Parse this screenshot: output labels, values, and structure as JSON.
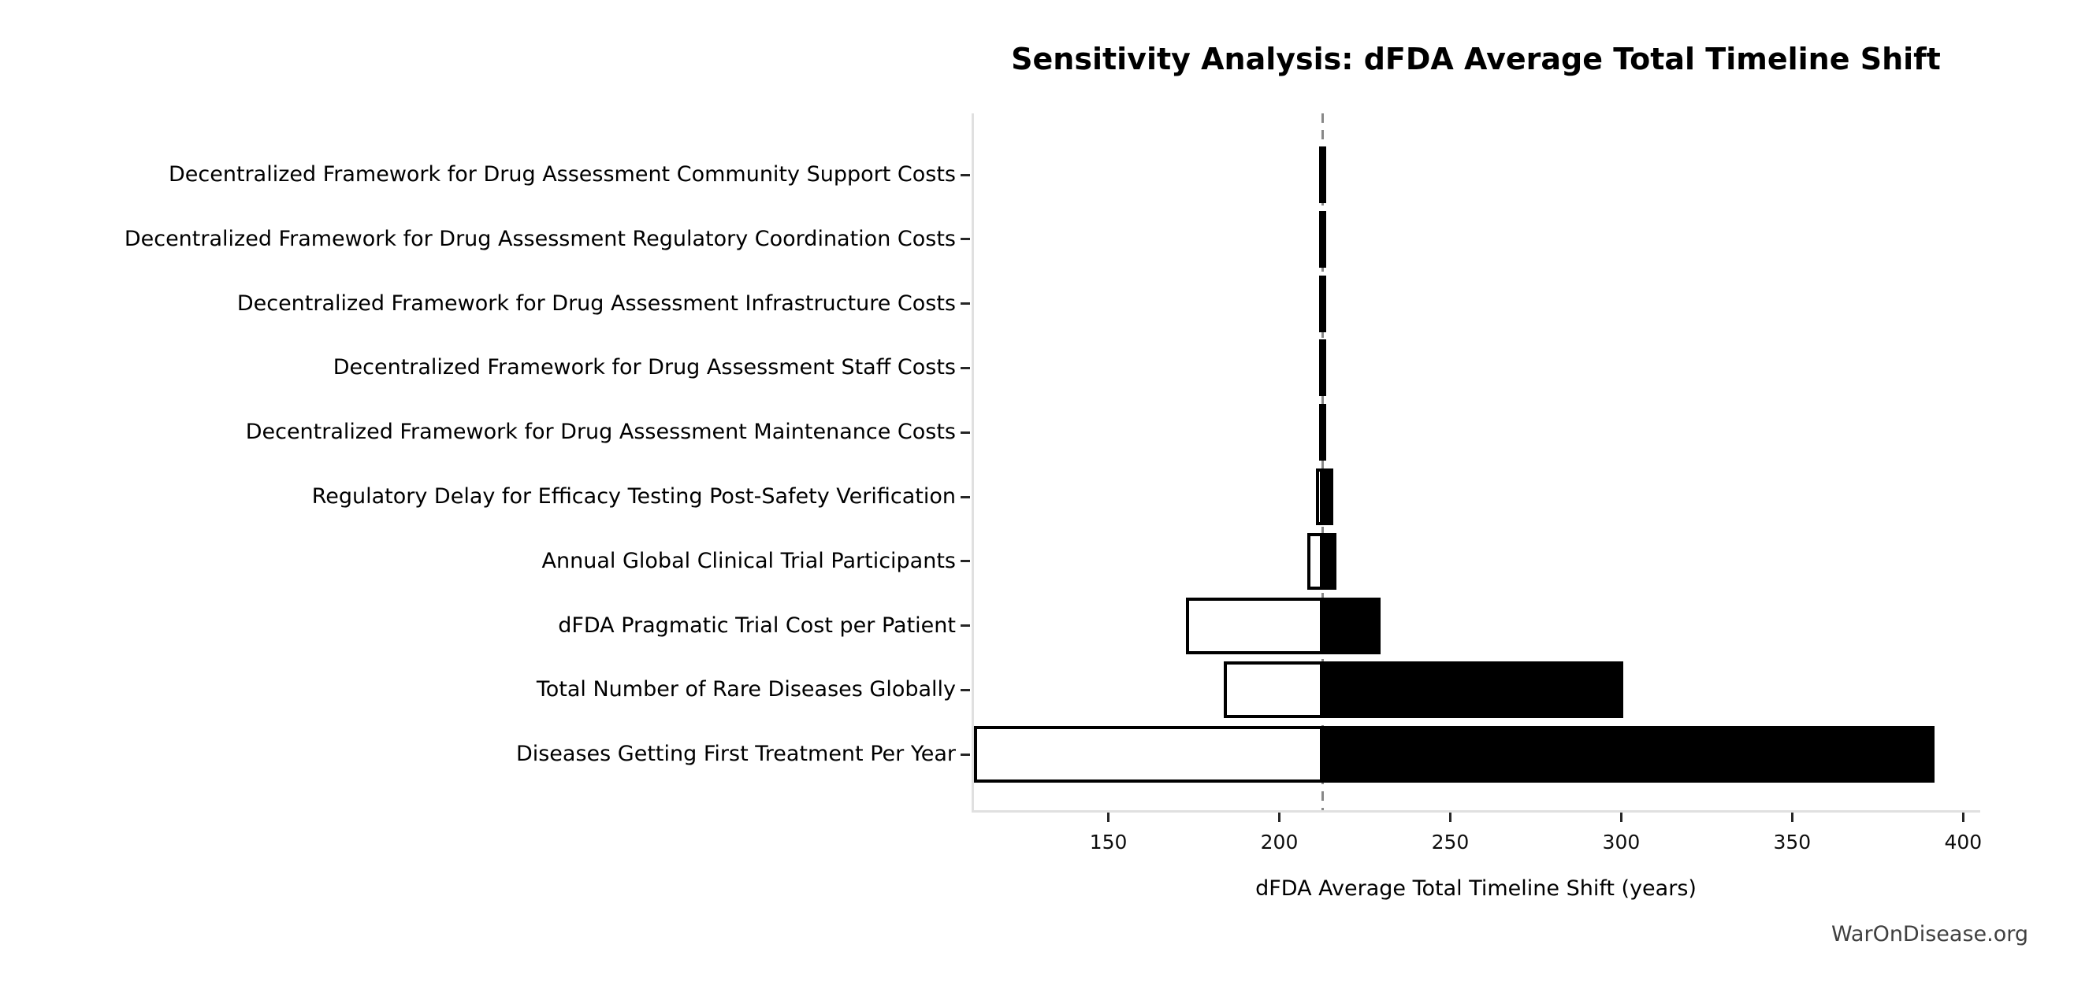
{
  "chart_data": {
    "type": "bar",
    "variant": "tornado-sensitivity",
    "title": "Sensitivity Analysis: dFDA Average Total Timeline Shift",
    "xlabel": "dFDA Average Total Timeline Shift (years)",
    "watermark": "WarOnDisease.org",
    "xlim": [
      110,
      405
    ],
    "x_ticks": [
      150,
      200,
      250,
      300,
      350,
      400
    ],
    "baseline": 212,
    "grid": false,
    "legend": "none",
    "categories": [
      "Decentralized Framework for Drug Assessment Community Support Costs",
      "Decentralized Framework for Drug Assessment Regulatory Coordination Costs",
      "Decentralized Framework for Drug Assessment Infrastructure Costs",
      "Decentralized Framework for Drug Assessment Staff Costs",
      "Decentralized Framework for Drug Assessment Maintenance Costs",
      "Regulatory Delay for Efficacy Testing Post-Safety Verification",
      "Annual Global Clinical Trial Participants",
      "dFDA Pragmatic Trial Cost per Patient",
      "Total Number of Rare Diseases Globally",
      "Diseases Getting First Treatment Per Year"
    ],
    "rows": [
      {
        "label": "Decentralized Framework for Drug Assessment Community Support Costs",
        "low": 211,
        "high": 213
      },
      {
        "label": "Decentralized Framework for Drug Assessment Regulatory Coordination Costs",
        "low": 211,
        "high": 213
      },
      {
        "label": "Decentralized Framework for Drug Assessment Infrastructure Costs",
        "low": 211,
        "high": 213
      },
      {
        "label": "Decentralized Framework for Drug Assessment Staff Costs",
        "low": 211,
        "high": 213
      },
      {
        "label": "Decentralized Framework for Drug Assessment Maintenance Costs",
        "low": 211,
        "high": 213
      },
      {
        "label": "Regulatory Delay for Efficacy Testing Post-Safety Verification",
        "low": 210,
        "high": 215
      },
      {
        "label": "Annual Global Clinical Trial Participants",
        "low": 207.5,
        "high": 216
      },
      {
        "label": "dFDA Pragmatic Trial Cost per Patient",
        "low": 172,
        "high": 229
      },
      {
        "label": "Total Number of Rare Diseases Globally",
        "low": 183,
        "high": 300
      },
      {
        "label": "Diseases Getting First Treatment Per Year",
        "low": 110,
        "high": 391
      }
    ],
    "colors": {
      "bar_high_fill": "#000000",
      "bar_low_fill": "#ffffff",
      "bar_border": "#000000",
      "baseline_line": "#888888",
      "spine": "#e0e0e0",
      "tick": "#262626",
      "text": "#000000",
      "watermark_text": "#404040",
      "background": "#ffffff"
    }
  }
}
